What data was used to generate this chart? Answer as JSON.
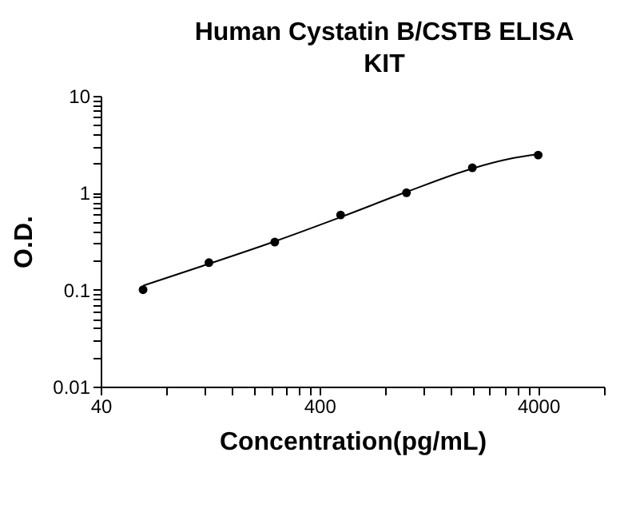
{
  "chart_data": {
    "type": "scatter",
    "title": "Human Cystatin B/CSTB ELISA KIT",
    "xlabel": "Concentration(pg/mL)",
    "ylabel": "O.D.",
    "log": "xy",
    "grid": false,
    "marker": "circle",
    "xlim": [
      40,
      8000
    ],
    "ylim": [
      0.01,
      10
    ],
    "xticks": [
      40,
      {
        "value": 80,
        "label": null
      },
      {
        "value": 120,
        "label": null
      },
      {
        "value": 160,
        "label": null
      },
      {
        "value": 200,
        "label": null
      },
      {
        "value": 240,
        "label": null
      },
      {
        "value": 280,
        "label": null
      },
      {
        "value": 320,
        "label": null
      },
      {
        "value": 360,
        "label": null
      },
      400,
      {
        "value": 800,
        "label": null
      },
      {
        "value": 1200,
        "label": null
      },
      {
        "value": 1600,
        "label": null
      },
      {
        "value": 2000,
        "label": null
      },
      {
        "value": 2400,
        "label": null
      },
      {
        "value": 2800,
        "label": null
      },
      {
        "value": 3200,
        "label": null
      },
      {
        "value": 3600,
        "label": null
      },
      4000,
      {
        "value": 8000,
        "label": null
      }
    ],
    "yticks": [
      0.01,
      {
        "value": 0.02,
        "label": null
      },
      {
        "value": 0.03,
        "label": null
      },
      {
        "value": 0.04,
        "label": null
      },
      {
        "value": 0.05,
        "label": null
      },
      {
        "value": 0.06,
        "label": null
      },
      {
        "value": 0.07,
        "label": null
      },
      {
        "value": 0.08,
        "label": null
      },
      {
        "value": 0.09,
        "label": null
      },
      0.1,
      {
        "value": 0.2,
        "label": null
      },
      {
        "value": 0.3,
        "label": null
      },
      {
        "value": 0.4,
        "label": null
      },
      {
        "value": 0.5,
        "label": null
      },
      {
        "value": 0.6,
        "label": null
      },
      {
        "value": 0.7,
        "label": null
      },
      {
        "value": 0.8,
        "label": null
      },
      {
        "value": 0.9,
        "label": null
      },
      1,
      {
        "value": 2,
        "label": null
      },
      {
        "value": 3,
        "label": null
      },
      {
        "value": 4,
        "label": null
      },
      {
        "value": 5,
        "label": null
      },
      {
        "value": 6,
        "label": null
      },
      {
        "value": 7,
        "label": null
      },
      {
        "value": 8,
        "label": null
      },
      {
        "value": 9,
        "label": null
      },
      10
    ],
    "series": [
      {
        "type": "line",
        "marker": "none",
        "color": "#000000",
        "x": [
          62.5,
          125,
          250,
          500,
          1000,
          2000,
          3000,
          4000
        ],
        "values": [
          0.11,
          0.185,
          0.315,
          0.56,
          1.02,
          1.78,
          2.25,
          2.5
        ]
      },
      {
        "type": "scatter",
        "color": "#000000",
        "x": [
          62.5,
          125,
          250,
          500,
          1000,
          2000,
          4000
        ],
        "values": [
          0.1,
          0.19,
          0.31,
          0.59,
          1.0,
          1.81,
          2.45
        ]
      }
    ]
  }
}
